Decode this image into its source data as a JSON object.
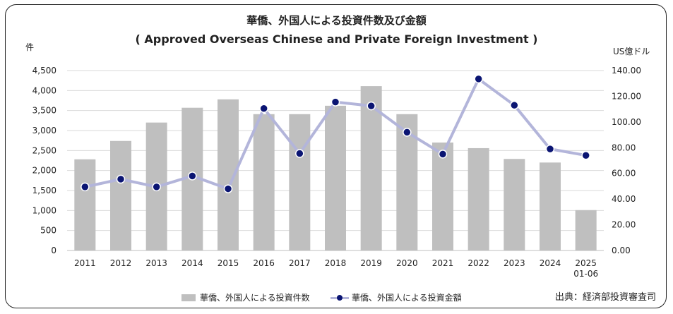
{
  "chart_data": {
    "type": "bar+line",
    "title": "華僑、外国人による投資件数及び金額",
    "subtitle": "( Approved Overseas Chinese and Private Foreign Investment )",
    "y_left_unit": "件",
    "y_right_unit": "US億ドル",
    "categories": [
      "2011",
      "2012",
      "2013",
      "2014",
      "2015",
      "2016",
      "2017",
      "2018",
      "2019",
      "2020",
      "2021",
      "2022",
      "2023",
      "2024",
      "2025\n01-06"
    ],
    "y_left_ticks": [
      "0",
      "500",
      "1,000",
      "1,500",
      "2,000",
      "2,500",
      "3,000",
      "3,500",
      "4,000",
      "4,500"
    ],
    "y_right_ticks": [
      "0.00",
      "20.00",
      "40.00",
      "60.00",
      "80.00",
      "100.00",
      "120.00",
      "140.00"
    ],
    "ylim_left": [
      0,
      4500
    ],
    "ylim_right": [
      0,
      140
    ],
    "grid": true,
    "legend_position": "bottom",
    "series": [
      {
        "name": "華僑、外国人による投資件数",
        "type": "bar",
        "axis": "left",
        "color": "#bfbfbf",
        "values": [
          2280,
          2740,
          3200,
          3570,
          3780,
          3410,
          3410,
          3620,
          4110,
          3410,
          2700,
          2560,
          2290,
          2200,
          1010
        ]
      },
      {
        "name": "華僑、外国人による投資金額",
        "type": "line",
        "axis": "right",
        "line_color": "#b3b5da",
        "marker_color": "#0b1573",
        "values": [
          49.5,
          55.5,
          49.5,
          58.0,
          48.0,
          110.5,
          75.5,
          115.5,
          112.5,
          92.0,
          75.0,
          133.5,
          113.0,
          79.0,
          74.0
        ]
      }
    ]
  },
  "source": "出典：経済部投資審査司"
}
